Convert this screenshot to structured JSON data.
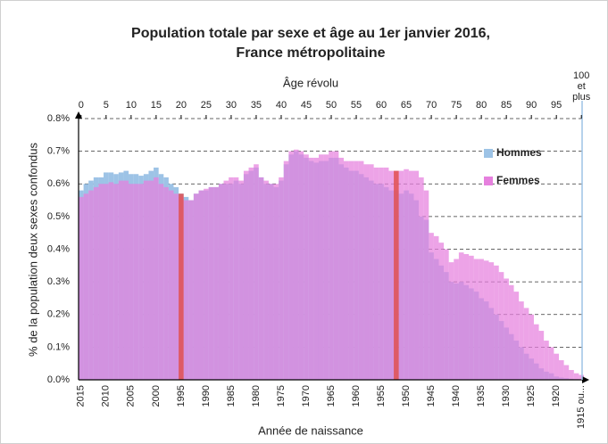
{
  "chart_data": {
    "type": "overlap_bar",
    "title": "Population totale par sexe et âge au 1er janvier 2016,",
    "subtitle": "France métropolitaine",
    "xlabel": "Âge révolu",
    "ylabel": "% de la population deux sexes confondus",
    "x": [
      0,
      1,
      2,
      3,
      4,
      5,
      6,
      7,
      8,
      9,
      10,
      11,
      12,
      13,
      14,
      15,
      16,
      17,
      18,
      19,
      20,
      21,
      22,
      23,
      24,
      25,
      26,
      27,
      28,
      29,
      30,
      31,
      32,
      33,
      34,
      35,
      36,
      37,
      38,
      39,
      40,
      41,
      42,
      43,
      44,
      45,
      46,
      47,
      48,
      49,
      50,
      51,
      52,
      53,
      54,
      55,
      56,
      57,
      58,
      59,
      60,
      61,
      62,
      63,
      64,
      65,
      66,
      67,
      68,
      69,
      70,
      71,
      72,
      73,
      74,
      75,
      76,
      77,
      78,
      79,
      80,
      81,
      82,
      83,
      84,
      85,
      86,
      87,
      88,
      89,
      90,
      91,
      92,
      93,
      94,
      95,
      96,
      97,
      98,
      99,
      100
    ],
    "series": [
      {
        "name": "Hommes",
        "color": "#9dc3e6",
        "values": [
          0.58,
          0.6,
          0.61,
          0.62,
          0.62,
          0.635,
          0.635,
          0.63,
          0.635,
          0.64,
          0.63,
          0.63,
          0.625,
          0.63,
          0.64,
          0.65,
          0.63,
          0.62,
          0.6,
          0.59,
          0.57,
          0.56,
          0.55,
          0.57,
          0.58,
          0.58,
          0.59,
          0.59,
          0.6,
          0.6,
          0.6,
          0.61,
          0.6,
          0.63,
          0.64,
          0.65,
          0.62,
          0.6,
          0.6,
          0.59,
          0.61,
          0.66,
          0.69,
          0.7,
          0.69,
          0.68,
          0.67,
          0.665,
          0.67,
          0.67,
          0.68,
          0.68,
          0.66,
          0.65,
          0.64,
          0.64,
          0.63,
          0.62,
          0.61,
          0.6,
          0.6,
          0.59,
          0.58,
          0.58,
          0.57,
          0.58,
          0.57,
          0.55,
          0.5,
          0.49,
          0.39,
          0.37,
          0.35,
          0.33,
          0.3,
          0.295,
          0.3,
          0.29,
          0.28,
          0.27,
          0.25,
          0.24,
          0.22,
          0.2,
          0.18,
          0.16,
          0.14,
          0.12,
          0.1,
          0.08,
          0.065,
          0.05,
          0.035,
          0.025,
          0.02,
          0.01,
          0.007,
          0.005,
          0.003,
          0.002,
          0.001
        ]
      },
      {
        "name": "Femmes",
        "color": "#e680de",
        "values": [
          0.56,
          0.57,
          0.58,
          0.59,
          0.6,
          0.6,
          0.605,
          0.6,
          0.61,
          0.61,
          0.6,
          0.6,
          0.6,
          0.61,
          0.61,
          0.62,
          0.6,
          0.59,
          0.58,
          0.57,
          0.56,
          0.55,
          0.55,
          0.57,
          0.58,
          0.585,
          0.59,
          0.59,
          0.6,
          0.61,
          0.62,
          0.62,
          0.61,
          0.64,
          0.65,
          0.66,
          0.62,
          0.61,
          0.6,
          0.6,
          0.62,
          0.67,
          0.7,
          0.705,
          0.7,
          0.69,
          0.68,
          0.68,
          0.69,
          0.69,
          0.7,
          0.7,
          0.68,
          0.67,
          0.67,
          0.67,
          0.67,
          0.66,
          0.66,
          0.65,
          0.65,
          0.65,
          0.64,
          0.64,
          0.64,
          0.645,
          0.64,
          0.64,
          0.62,
          0.58,
          0.45,
          0.44,
          0.42,
          0.4,
          0.36,
          0.37,
          0.39,
          0.385,
          0.38,
          0.37,
          0.37,
          0.365,
          0.36,
          0.35,
          0.33,
          0.31,
          0.29,
          0.27,
          0.24,
          0.22,
          0.2,
          0.17,
          0.15,
          0.12,
          0.1,
          0.08,
          0.06,
          0.045,
          0.03,
          0.02,
          0.015
        ]
      }
    ],
    "highlight": {
      "color": "#e05050",
      "x": [
        20,
        63
      ]
    },
    "xlim": [
      -0.5,
      100.5
    ],
    "xticks": [
      0,
      5,
      10,
      15,
      20,
      25,
      30,
      35,
      40,
      45,
      50,
      55,
      60,
      65,
      70,
      75,
      80,
      85,
      90,
      95,
      {
        "value": 100,
        "label": "100 et plus"
      }
    ],
    "ylim": [
      0,
      0.8
    ],
    "yticks": [
      {
        "value": 0,
        "label": "0.0%"
      },
      {
        "value": 0.1,
        "label": "0.1%"
      },
      {
        "value": 0.2,
        "label": "0.2%"
      },
      {
        "value": 0.3,
        "label": "0.3%"
      },
      {
        "value": 0.4,
        "label": "0.4%"
      },
      {
        "value": 0.5,
        "label": "0.5%"
      },
      {
        "value": 0.6,
        "label": "0.6%"
      },
      {
        "value": 0.7,
        "label": "0.7%"
      },
      {
        "value": 0.8,
        "label": "0.8%"
      }
    ],
    "bottom_axis": {
      "label": "Année de naissance",
      "origin": 2015,
      "ticks": [
        2015,
        2010,
        2005,
        2000,
        1995,
        1990,
        1985,
        1980,
        1975,
        1970,
        1965,
        1960,
        1955,
        1950,
        1945,
        1940,
        1935,
        1930,
        1925,
        1920,
        {
          "value": 1915,
          "label": "1915 ou..."
        }
      ]
    },
    "grid": true,
    "legend": "upper right"
  }
}
